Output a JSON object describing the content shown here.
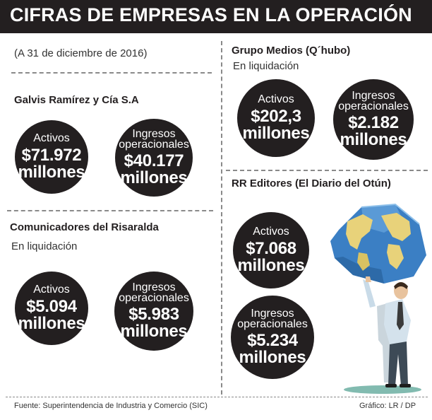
{
  "title": "CIFRAS DE EMPRESAS EN LA OPERACIÓN",
  "date_note": "(A 31 de diciembre de 2016)",
  "companies": [
    {
      "name": "Galvis Ramírez y Cía S.A",
      "status": "",
      "activos": {
        "label": "Activos",
        "value": "$71.972",
        "unit": "millones"
      },
      "ingresos": {
        "label_1": "Ingresos",
        "label_2": "operacionales",
        "value": "$40.177",
        "unit": "millones"
      }
    },
    {
      "name": "Comunicadores del Risaralda",
      "status": "En liquidación",
      "activos": {
        "label": "Activos",
        "value": "$5.094",
        "unit": "millones"
      },
      "ingresos": {
        "label_1": "Ingresos",
        "label_2": "operacionales",
        "value": "$5.983",
        "unit": "millones"
      }
    },
    {
      "name": "Grupo Medios (Q´hubo)",
      "status": "En liquidación",
      "activos": {
        "label": "Activos",
        "value": "$202,3",
        "unit": "millones"
      },
      "ingresos": {
        "label_1": "Ingresos",
        "label_2": "operacionales",
        "value": "$2.182",
        "unit": "millones"
      }
    },
    {
      "name": "RR Editores (El Diario del Otún)",
      "status": "",
      "activos": {
        "label": "Activos",
        "value": "$7.068",
        "unit": "millones"
      },
      "ingresos": {
        "label_1": "Ingresos",
        "label_2": "operacionales",
        "value": "$5.234",
        "unit": "millones"
      }
    }
  ],
  "footer": {
    "source": "Fuente:  Superintendencia de Industria y Comercio (SIC)",
    "credit": "Gráfico: LR / DP"
  },
  "colors": {
    "header_bg": "#231f20",
    "circle_bg": "#231f20",
    "ocean": "#3b7fc4",
    "land": "#e8d27a"
  },
  "illustration": "man-holding-globe-icon"
}
